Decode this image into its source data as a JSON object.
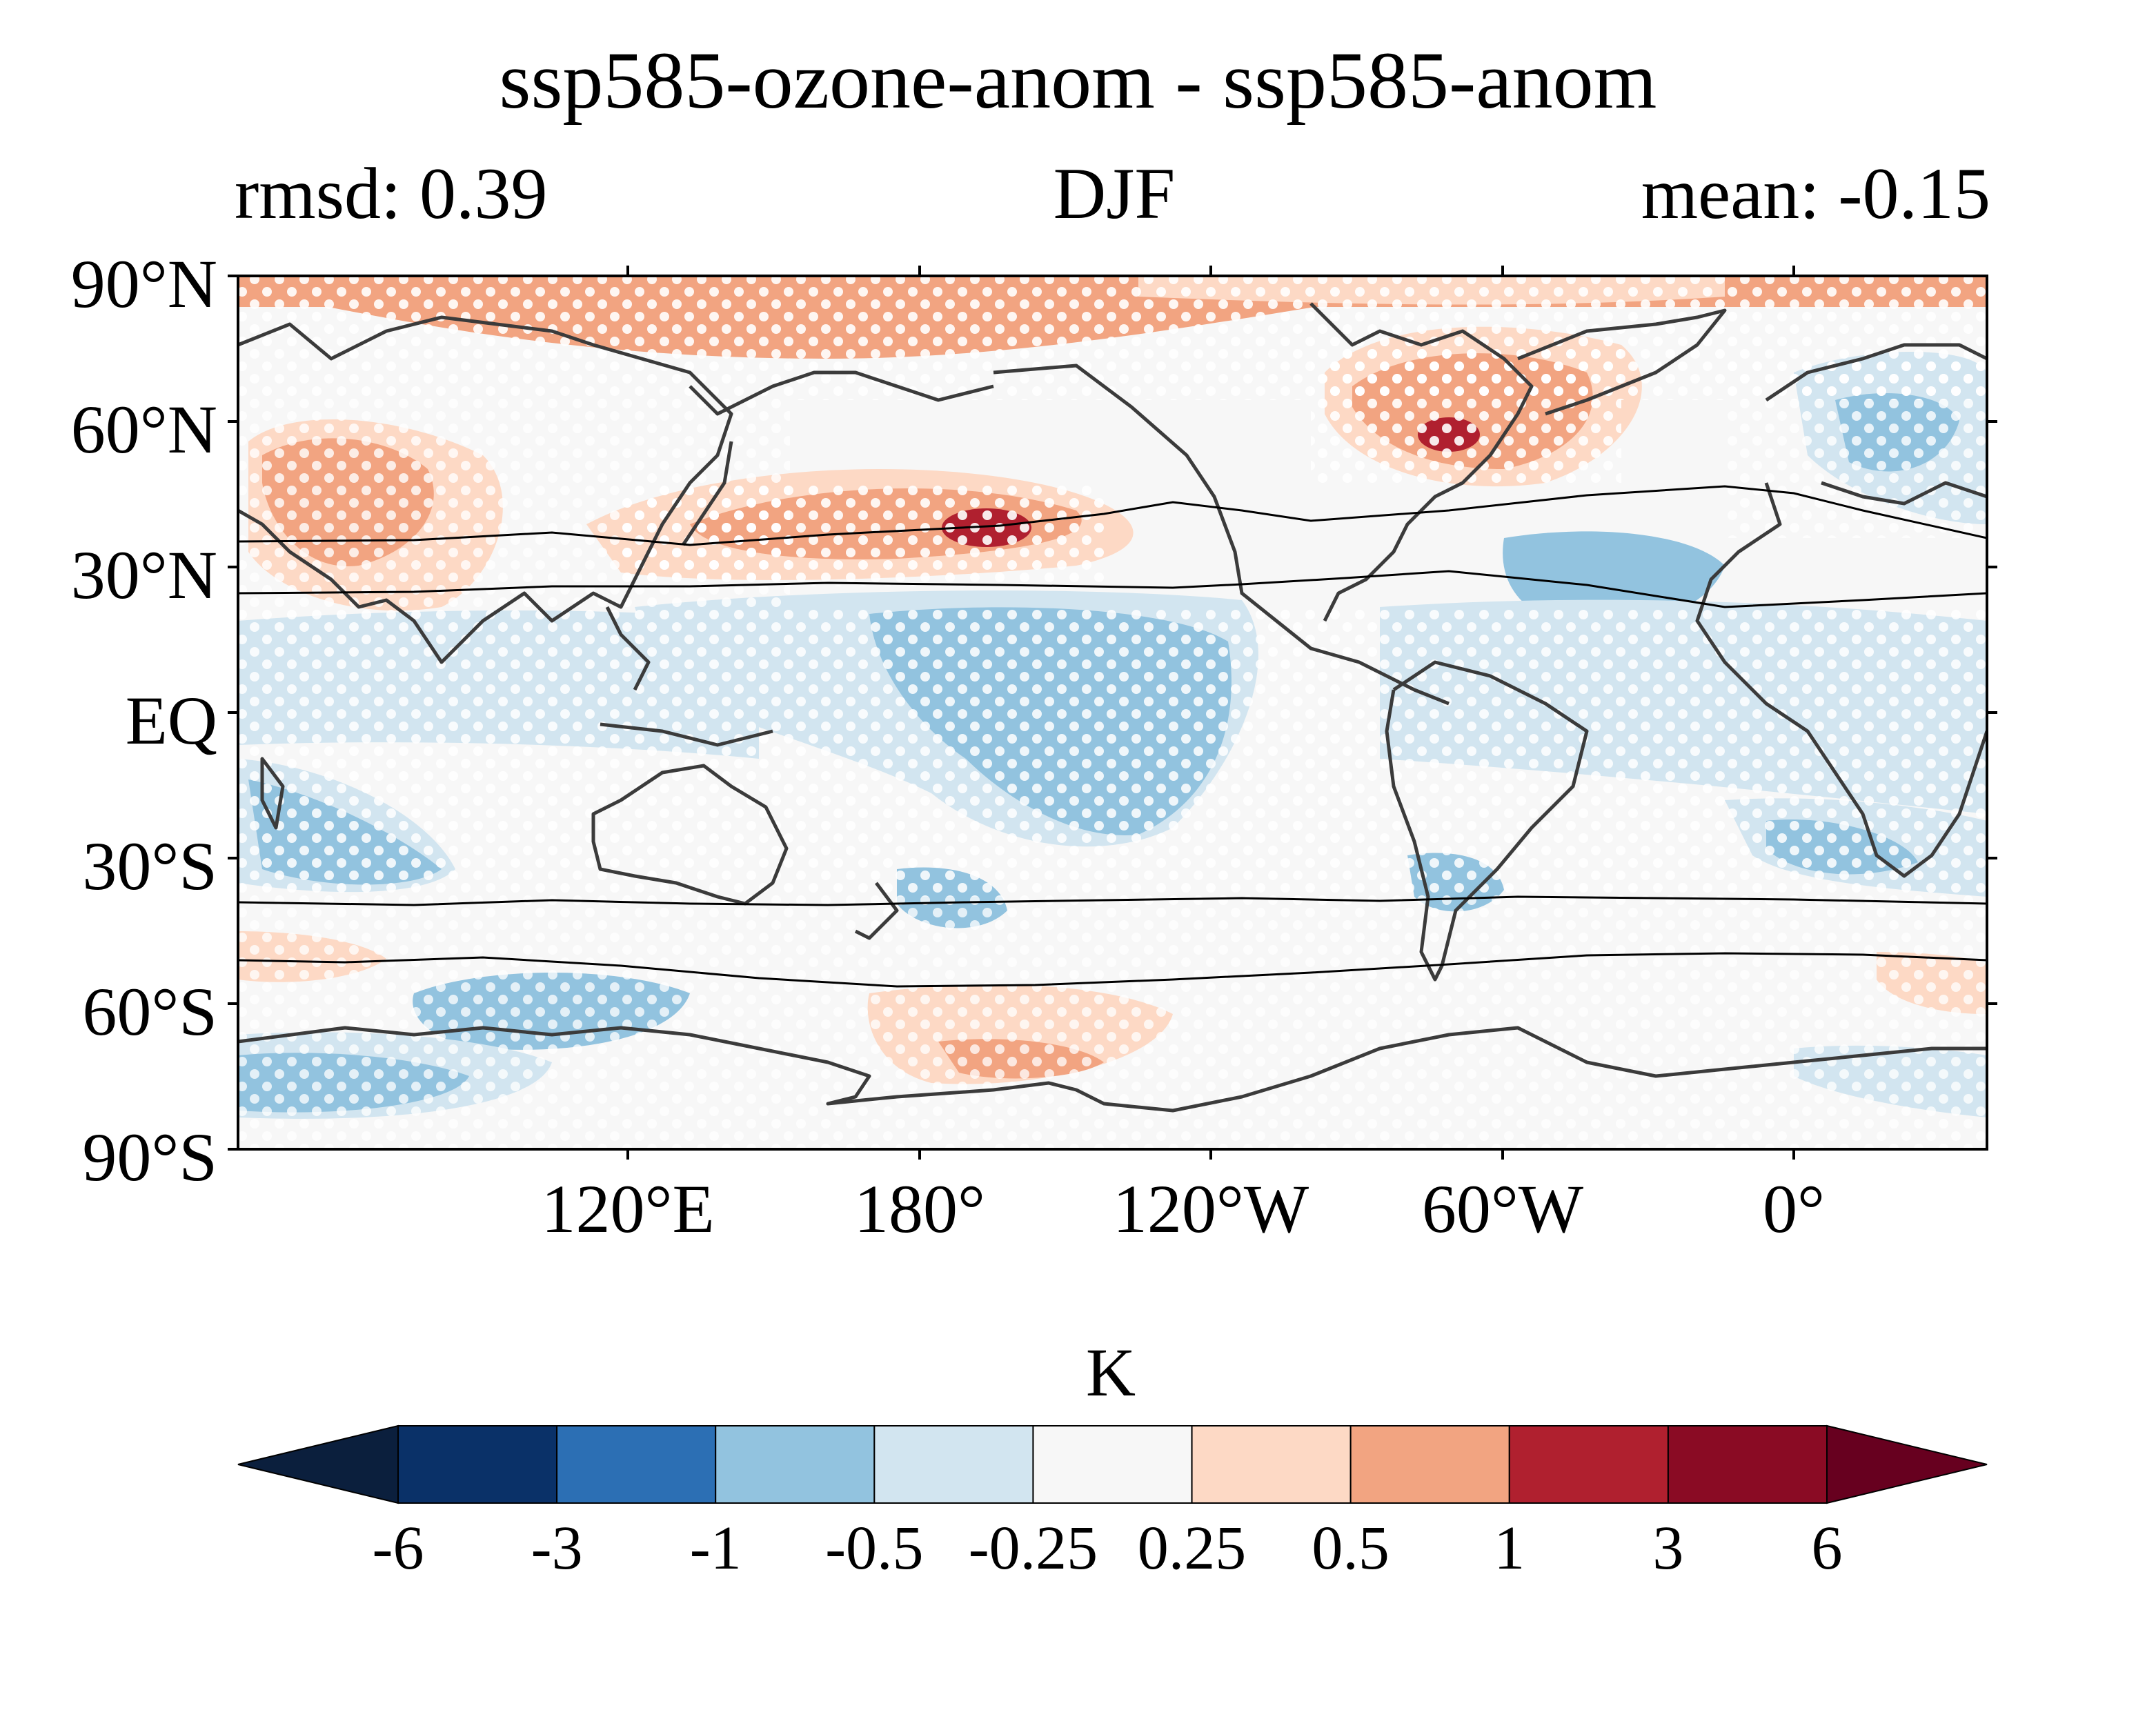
{
  "title": "ssp585-ozone-anom - ssp585-anom",
  "subtitle_left": "rmsd: 0.39",
  "subtitle_center": "DJF",
  "subtitle_right": "mean: -0.15",
  "map": {
    "lat_ticks": [
      "90°N",
      "60°N",
      "30°N",
      "EQ",
      "30°S",
      "60°S",
      "90°S"
    ],
    "lon_ticks": [
      "120°E",
      "180°",
      "120°W",
      "60°W",
      "0°"
    ]
  },
  "colorbar": {
    "unit": "K",
    "tick_labels": [
      "-6",
      "-3",
      "-1",
      "-0.5",
      "-0.25",
      "0.25",
      "0.5",
      "1",
      "3",
      "6"
    ],
    "colors": [
      "#0b1f3d",
      "#0a3168",
      "#2c6fb4",
      "#92c3df",
      "#d2e5f0",
      "#f7f7f7",
      "#fdd9c5",
      "#f2a481",
      "#b0202f",
      "#8a0b24",
      "#67001f"
    ]
  }
}
